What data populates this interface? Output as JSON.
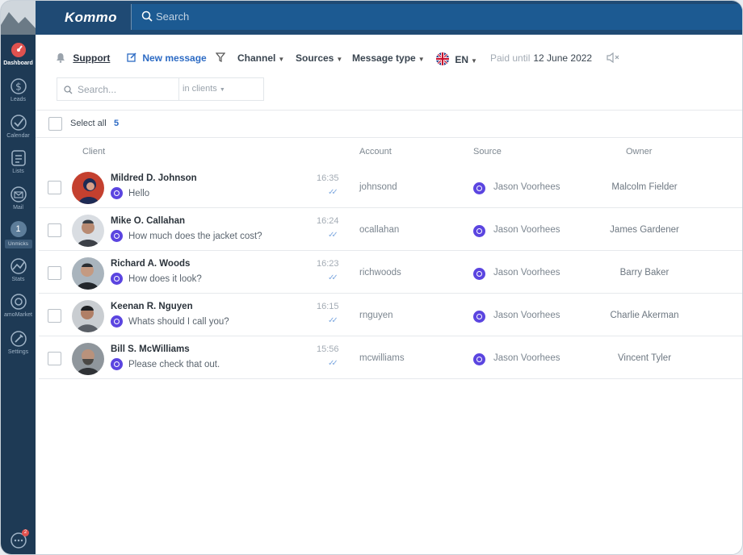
{
  "sidebar": {
    "items": [
      {
        "label": "Dashboard",
        "icon": "dashboard-icon"
      },
      {
        "label": "Leads",
        "icon": "dollar-icon"
      },
      {
        "label": "Calendar",
        "icon": "check-circle-icon"
      },
      {
        "label": "Lists",
        "icon": "list-icon"
      },
      {
        "label": "Mail",
        "icon": "mail-icon"
      },
      {
        "label": "Unmicks",
        "count": "1"
      },
      {
        "label": "Stats",
        "icon": "stats-icon"
      },
      {
        "label": "amoMarket",
        "icon": "market-icon"
      },
      {
        "label": "Settings",
        "icon": "settings-icon"
      }
    ],
    "chat_badge": "2"
  },
  "header": {
    "logo": "Kommo",
    "search_placeholder": "Search"
  },
  "toolbar": {
    "support": "Support",
    "new_message": "New message",
    "channel": "Channel",
    "sources": "Sources",
    "message_type": "Message type",
    "language": "EN",
    "paid_until_label": "Paid until",
    "paid_until_date": "12 June 2022"
  },
  "filter": {
    "placeholder": "Search...",
    "scope": "in clients"
  },
  "select_all": {
    "label": "Select all",
    "count": "5"
  },
  "columns": {
    "client": "Client",
    "account": "Account",
    "source": "Source",
    "owner": "Owner"
  },
  "rows": [
    {
      "name": "Mildred D. Johnson",
      "message": "Hello",
      "time": "16:35",
      "account": "johnsond",
      "source": "Jason Voorhees",
      "owner": "Malcolm Fielder"
    },
    {
      "name": "Mike O. Callahan",
      "message": "How much does the jacket cost?",
      "time": "16:24",
      "account": "ocallahan",
      "source": "Jason Voorhees",
      "owner": "James Gardener"
    },
    {
      "name": "Richard A. Woods",
      "message": "How does it look?",
      "time": "16:23",
      "account": "richwoods",
      "source": "Jason Voorhees",
      "owner": "Barry Baker"
    },
    {
      "name": "Keenan R. Nguyen",
      "message": "Whats should I call you?",
      "time": "16:15",
      "account": "rnguyen",
      "source": "Jason Voorhees",
      "owner": "Charlie Akerman"
    },
    {
      "name": "Bill S. McWilliams",
      "message": "Please check that out.",
      "time": "15:56",
      "account": "mcwilliams",
      "source": "Jason Voorhees",
      "owner": "Vincent Tyler"
    }
  ],
  "colors": {
    "sidebar_bg": "#1e3a55",
    "topbar_bg": "#1f4a74",
    "accent": "#2d6bc4",
    "channel_icon": "#5b45e0"
  }
}
